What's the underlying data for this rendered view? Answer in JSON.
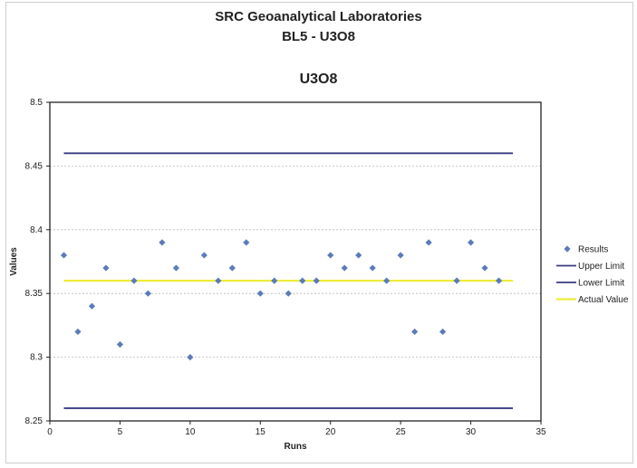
{
  "header": {
    "line1": "SRC Geoanalytical Laboratories",
    "line2": "BL5 - U3O8",
    "chart_title": "U3O8"
  },
  "colors": {
    "results": "#5b7bb8",
    "upper_limit": "#3a3a85",
    "lower_limit": "#3a3a85",
    "actual_value": "#ecec3c",
    "gridline": "#bbbbbb"
  },
  "chart_data": {
    "type": "scatter",
    "title": "U3O8",
    "xlabel": "Runs",
    "ylabel": "Values",
    "xlim": [
      0,
      35
    ],
    "ylim": [
      8.25,
      8.5
    ],
    "xticks": [
      "0",
      "5",
      "10",
      "15",
      "20",
      "25",
      "30",
      "35"
    ],
    "yticks": [
      "8.25",
      "8.3",
      "8.35",
      "8.4",
      "8.45",
      "8.5"
    ],
    "grid": true,
    "legend_position": "right",
    "series": [
      {
        "name": "Results",
        "kind": "points",
        "x": [
          1,
          2,
          3,
          4,
          5,
          6,
          7,
          8,
          9,
          10,
          11,
          12,
          13,
          14,
          15,
          16,
          17,
          18,
          19,
          20,
          21,
          22,
          23,
          24,
          25,
          26,
          27,
          28,
          29,
          30,
          31,
          32
        ],
        "y": [
          8.38,
          8.32,
          8.34,
          8.37,
          8.31,
          8.36,
          8.35,
          8.39,
          8.37,
          8.3,
          8.38,
          8.36,
          8.37,
          8.39,
          8.35,
          8.36,
          8.35,
          8.36,
          8.36,
          8.38,
          8.37,
          8.38,
          8.37,
          8.36,
          8.38,
          8.32,
          8.39,
          8.32,
          8.36,
          8.39,
          8.37,
          8.36
        ]
      },
      {
        "name": "Upper Limit",
        "kind": "line",
        "x": [
          1,
          33
        ],
        "y": [
          8.46,
          8.46
        ]
      },
      {
        "name": "Lower Limit",
        "kind": "line",
        "x": [
          1,
          33
        ],
        "y": [
          8.26,
          8.26
        ]
      },
      {
        "name": "Actual Value",
        "kind": "line",
        "x": [
          1,
          33
        ],
        "y": [
          8.36,
          8.36
        ]
      }
    ]
  }
}
